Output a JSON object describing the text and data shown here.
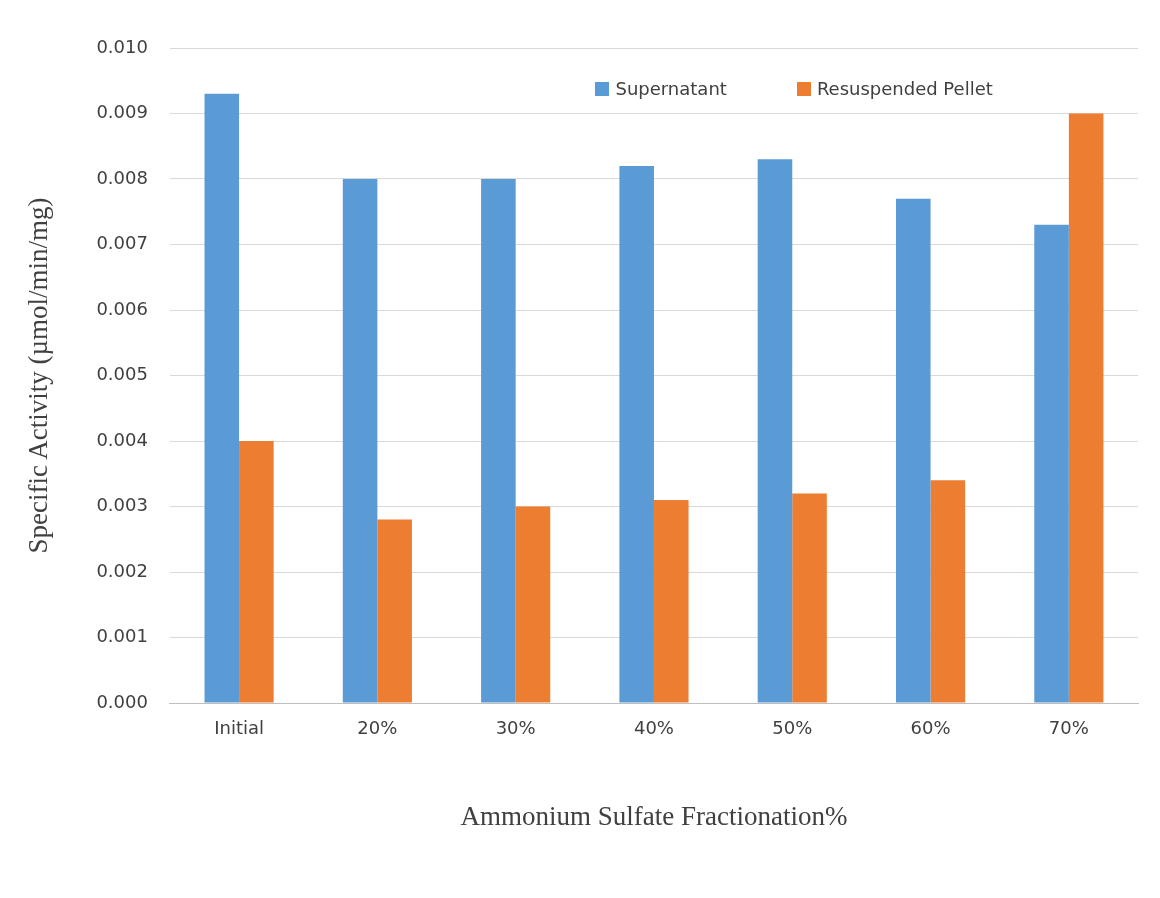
{
  "chart_data": {
    "type": "bar",
    "xlabel": "Ammonium Sulfate Fractionation%",
    "ylabel": "Specific Activity (µmol/min/mg)",
    "categories": [
      "Initial",
      "20%",
      "30%",
      "40%",
      "50%",
      "60%",
      "70%"
    ],
    "series": [
      {
        "name": "Supernatant",
        "color": "#5b9bd5",
        "values": [
          0.0093,
          0.008,
          0.008,
          0.0082,
          0.0083,
          0.0077,
          0.0073
        ]
      },
      {
        "name": "Resuspended Pellet",
        "color": "#ed7d31",
        "values": [
          0.004,
          0.0028,
          0.003,
          0.0031,
          0.0032,
          0.0034,
          0.009
        ]
      }
    ],
    "ylim": [
      0,
      0.01
    ],
    "yticks": [
      {
        "value": 0,
        "label": "0.000"
      },
      {
        "value": 0.001,
        "label": "0.001"
      },
      {
        "value": 0.002,
        "label": "0.002"
      },
      {
        "value": 0.003,
        "label": "0.003"
      },
      {
        "value": 0.004,
        "label": "0.004"
      },
      {
        "value": 0.005,
        "label": "0.005"
      },
      {
        "value": 0.006,
        "label": "0.006"
      },
      {
        "value": 0.007,
        "label": "0.007"
      },
      {
        "value": 0.008,
        "label": "0.008"
      },
      {
        "value": 0.009,
        "label": "0.009"
      },
      {
        "value": 0.01,
        "label": "0.010"
      }
    ],
    "grid": "y",
    "legend": "top"
  }
}
